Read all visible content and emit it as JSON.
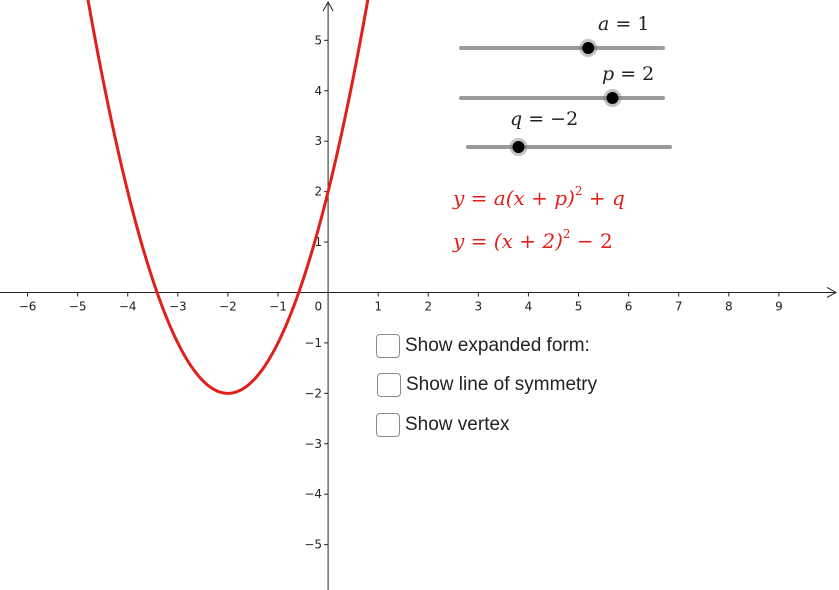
{
  "chart_data": {
    "type": "line",
    "title": "",
    "xlabel": "",
    "ylabel": "",
    "xlim": [
      -6.55,
      10.2
    ],
    "ylim": [
      -5.9,
      5.8
    ],
    "x_ticks": [
      -6,
      -5,
      -4,
      -3,
      -2,
      -1,
      1,
      2,
      3,
      4,
      5,
      6,
      7,
      8,
      9
    ],
    "y_ticks": [
      -5,
      -4,
      -3,
      -2,
      -1,
      1,
      2,
      3,
      4,
      5
    ],
    "origin_label": "0",
    "grid": false,
    "series": [
      {
        "function": "a(x+p)^2+q",
        "params": {
          "a": 1,
          "p": 2,
          "q": -2
        },
        "color": "#e0201b",
        "vertex": [
          -2,
          -2
        ],
        "x_intercepts": [
          -3.414,
          -0.586
        ],
        "y_intercept": 2
      }
    ]
  },
  "sliders": [
    {
      "name": "a",
      "value": 1,
      "label_lhs": "a",
      "label_rhs": "1",
      "fraction": 0.63
    },
    {
      "name": "p",
      "value": 2,
      "label_lhs": "p",
      "label_rhs": "2",
      "fraction": 0.75
    },
    {
      "name": "q",
      "value": -2,
      "label_lhs": "q",
      "label_rhs": "−2",
      "fraction": 0.25
    }
  ],
  "equations": {
    "general": {
      "lhs": "y",
      "body": "a(x + p)",
      "exp": "2",
      "tail": "+ q"
    },
    "specific": {
      "lhs": "y",
      "body": "(x + 2)",
      "exp": "2",
      "tail": "− 2"
    }
  },
  "checkboxes": [
    {
      "label": "Show expanded form:",
      "checked": false
    },
    {
      "label": "Show line of symmetry",
      "checked": false
    },
    {
      "label": "Show vertex",
      "checked": false
    }
  ],
  "colors": {
    "curve": "#e0201b",
    "slider_track": "#9a9a9a",
    "slider_knob": "#000000",
    "axis": "#222222"
  }
}
